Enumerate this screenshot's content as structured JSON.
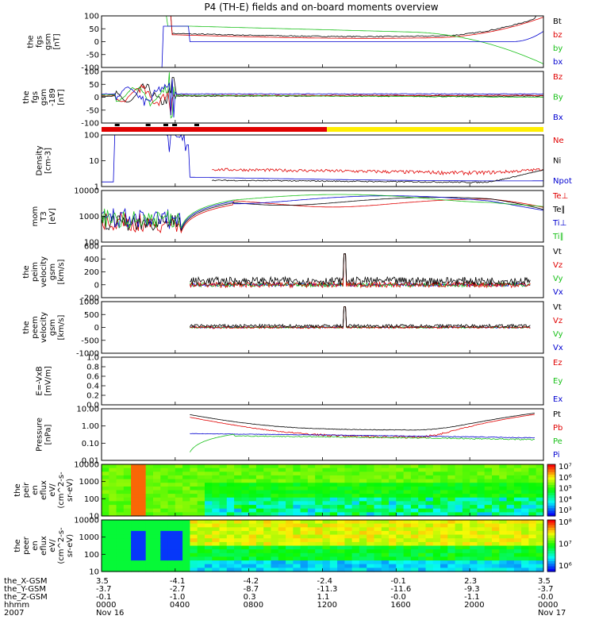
{
  "title": "P4 (TH-E) fields and on-board moments overview",
  "colors": {
    "black": "#000000",
    "red": "#e00000",
    "green": "#18c018",
    "blue": "#0000d0",
    "yellow": "#ffee00"
  },
  "chart_data": {
    "type": "line",
    "x_ticks_hhmm": [
      "0000",
      "0400",
      "0800",
      "1200",
      "1600",
      "2000"
    ],
    "panels": [
      {
        "id": "fgs",
        "ylabel": [
          "the",
          "fgs",
          "gsm",
          "[nT]"
        ],
        "yticks": [
          "100",
          "50",
          "0",
          "-50",
          "-100"
        ],
        "ylim": [
          -100,
          100
        ],
        "scale": "linear",
        "legend": [
          {
            "label": "Bt",
            "color": "black"
          },
          {
            "label": "bz",
            "color": "red"
          },
          {
            "label": "by",
            "color": "green"
          },
          {
            "label": "bx",
            "color": "blue"
          }
        ]
      },
      {
        "id": "fgs_dsl",
        "ylabel": [
          "the",
          "fgs",
          "gsm",
          "-189",
          "[nT]"
        ],
        "yticks": [
          "100",
          "50",
          "0",
          "-50",
          "-100"
        ],
        "ylim": [
          -120,
          100
        ],
        "scale": "linear",
        "legend": [
          {
            "label": "Bz",
            "color": "red"
          },
          {
            "label": "By",
            "color": "green"
          },
          {
            "label": "Bx",
            "color": "blue"
          }
        ]
      },
      {
        "id": "density",
        "ylabel": [
          "Density",
          "[cm-3]"
        ],
        "yticks": [
          "100",
          "10",
          "1"
        ],
        "ylim": [
          0.5,
          100
        ],
        "scale": "log",
        "legend": [
          {
            "label": "Ne",
            "color": "red"
          },
          {
            "label": "Ni",
            "color": "black"
          },
          {
            "label": "Npot",
            "color": "blue"
          }
        ]
      },
      {
        "id": "temp",
        "ylabel": [
          "mom",
          "T3",
          "[eV]"
        ],
        "yticks": [
          "10000",
          "1000",
          "100"
        ],
        "ylim": [
          60,
          10000
        ],
        "scale": "log",
        "legend": [
          {
            "label": "Te⊥",
            "color": "red"
          },
          {
            "label": "Te∥",
            "color": "black"
          },
          {
            "label": "Ti⊥",
            "color": "blue"
          },
          {
            "label": "Ti∥",
            "color": "green"
          }
        ]
      },
      {
        "id": "vel_peim",
        "ylabel": [
          "the",
          "peim",
          "velocity",
          "gsm",
          "[km/s]"
        ],
        "yticks": [
          "600",
          "400",
          "200",
          "0",
          "-200"
        ],
        "ylim": [
          -200,
          600
        ],
        "scale": "linear",
        "legend": [
          {
            "label": "Vt",
            "color": "black"
          },
          {
            "label": "Vz",
            "color": "red"
          },
          {
            "label": "Vy",
            "color": "green"
          },
          {
            "label": "Vx",
            "color": "blue"
          }
        ]
      },
      {
        "id": "vel_peem",
        "ylabel": [
          "the",
          "peem",
          "velocity",
          "gsm",
          "[km/s]"
        ],
        "yticks": [
          "1000",
          "500",
          "0",
          "-500",
          "-1000"
        ],
        "ylim": [
          -1000,
          1000
        ],
        "scale": "linear",
        "legend": [
          {
            "label": "Vt",
            "color": "black"
          },
          {
            "label": "Vz",
            "color": "red"
          },
          {
            "label": "Vy",
            "color": "green"
          },
          {
            "label": "Vx",
            "color": "blue"
          }
        ]
      },
      {
        "id": "efield",
        "ylabel": [
          "E=-VxB",
          "[mV/m]"
        ],
        "yticks": [
          "1.0",
          "0.8",
          "0.6",
          "0.4",
          "0.2",
          "0.0"
        ],
        "ylim": [
          0,
          1
        ],
        "scale": "linear",
        "legend": [
          {
            "label": "Ez",
            "color": "red"
          },
          {
            "label": "Ey",
            "color": "green"
          },
          {
            "label": "Ex",
            "color": "blue"
          }
        ]
      },
      {
        "id": "pressure",
        "ylabel": [
          "Pressure",
          "[nPa]"
        ],
        "yticks": [
          "10.00",
          "1.00",
          "0.10",
          "0.01"
        ],
        "ylim": [
          0.01,
          10
        ],
        "scale": "log",
        "legend": [
          {
            "label": "Pt",
            "color": "black"
          },
          {
            "label": "Pb",
            "color": "red"
          },
          {
            "label": "Pe",
            "color": "green"
          },
          {
            "label": "Pi",
            "color": "blue"
          }
        ]
      },
      {
        "id": "peir_spec",
        "ylabel": [
          "the",
          "peir",
          "en",
          "eflux",
          "eV/",
          "(cm^2-s-",
          "sr-eV)"
        ],
        "yticks": [
          "10000",
          "1000",
          "100",
          "10"
        ],
        "type": "heatmap",
        "colorbar_ticks": [
          "10⁷",
          "10⁶",
          "10⁵",
          "10⁴",
          "10³"
        ]
      },
      {
        "id": "peer_spec",
        "ylabel": [
          "the",
          "peer",
          "en",
          "eflux",
          "eV/",
          "(cm^2-s-",
          "sr-eV)"
        ],
        "yticks": [
          "10000",
          "1000",
          "100",
          "10"
        ],
        "type": "heatmap",
        "colorbar_ticks": [
          "10⁸",
          "10⁷",
          "10⁶"
        ]
      }
    ],
    "orbit_table": {
      "rows": [
        {
          "label": "the_X-GSM",
          "values": [
            "3.5",
            "-4.1",
            "-4.2",
            "-2.4",
            "-0.1",
            "2.3",
            "3.5"
          ]
        },
        {
          "label": "the_Y-GSM",
          "values": [
            "-3.7",
            "-2.7",
            "-8.7",
            "-11.3",
            "-11.6",
            "-9.3",
            "-3.7"
          ]
        },
        {
          "label": "the_Z-GSM",
          "values": [
            "-0.1",
            "-1.0",
            "0.3",
            "1.1",
            "-0.0",
            "-1.1",
            "-0.0"
          ]
        },
        {
          "label": "hhmm",
          "values": [
            "0000",
            "0400",
            "0800",
            "1200",
            "1600",
            "2000",
            "0000"
          ]
        },
        {
          "label": "2007",
          "values": [
            "Nov 16",
            "",
            "",
            "",
            "",
            "",
            "Nov 17"
          ]
        }
      ]
    }
  }
}
